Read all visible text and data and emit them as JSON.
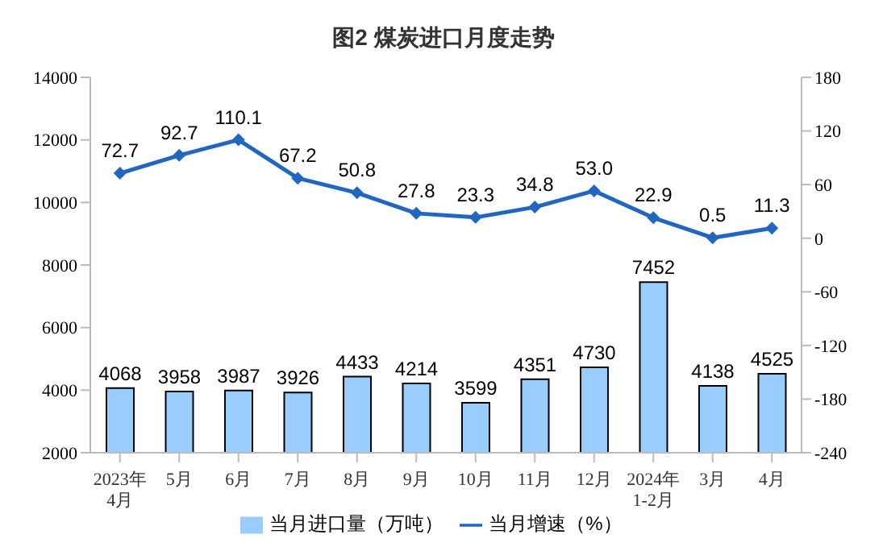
{
  "chart_data": {
    "type": "bar",
    "title": "图2  煤炭进口月度走势",
    "categories": [
      "2023年\n4月",
      "5月",
      "6月",
      "7月",
      "8月",
      "9月",
      "10月",
      "11月",
      "12月",
      "2024年\n1-2月",
      "3月",
      "4月"
    ],
    "series": [
      {
        "name": "当月进口量（万吨）",
        "color": "#99ccff",
        "values": [
          4068,
          3958,
          3987,
          3926,
          4433,
          4214,
          3599,
          4351,
          4730,
          7452,
          4138,
          4525
        ]
      },
      {
        "name": "当月增速（%）",
        "type": "line",
        "axis": "y2",
        "color": "#2166c1",
        "marker": "diamond",
        "values": [
          72.7,
          92.7,
          110.1,
          67.2,
          50.8,
          27.8,
          23.3,
          34.8,
          53.0,
          22.9,
          0.5,
          11.3
        ],
        "value_labels": [
          "72.7",
          "92.7",
          "110.1",
          "67.2",
          "50.8",
          "27.8",
          "23.3",
          "34.8",
          "53.0",
          "22.9",
          "0.5",
          "11.3"
        ]
      }
    ],
    "ylim": [
      2000,
      14000
    ],
    "yticks": [
      2000,
      4000,
      6000,
      8000,
      10000,
      12000,
      14000
    ],
    "y2lim": [
      -240,
      180
    ],
    "y2ticks": [
      -240,
      -180,
      -120,
      -60,
      0,
      60,
      120,
      180
    ],
    "data_labels": true,
    "grid": false,
    "legend": "bottom"
  }
}
